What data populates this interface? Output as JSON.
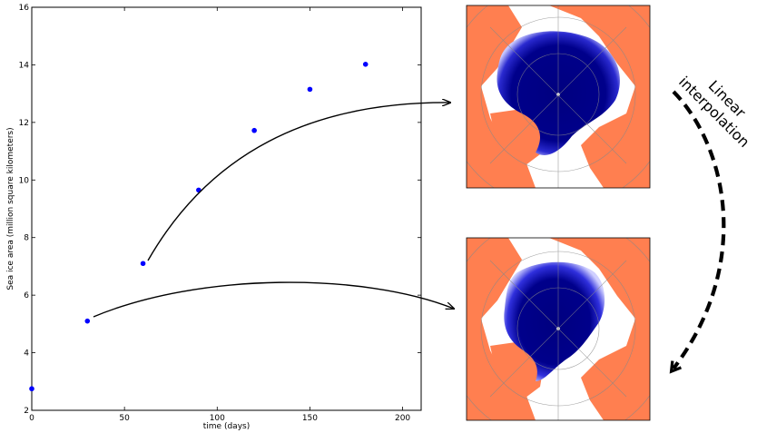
{
  "chart_data": {
    "type": "scatter",
    "xlabel": "time (days)",
    "ylabel": "Sea ice area (million square kilometers)",
    "xlim": [
      0,
      210
    ],
    "ylim": [
      2,
      16
    ],
    "x_ticks": [
      0,
      50,
      100,
      150,
      200
    ],
    "y_ticks": [
      2,
      4,
      6,
      8,
      10,
      12,
      14,
      16
    ],
    "grid": false,
    "series": [
      {
        "color": "#0000ff",
        "x": [
          0,
          30,
          60,
          90,
          120,
          150,
          180
        ],
        "y": [
          2.75,
          5.1,
          7.1,
          9.65,
          11.72,
          13.15,
          14.02
        ]
      }
    ]
  },
  "annotation": {
    "line1": "Linear",
    "line2": "interpolation"
  },
  "colors": {
    "land": "#ff7f50",
    "ice_dark": "#000080",
    "ice_mid": "#1a1acc",
    "map_bg": "#ffffff",
    "grid": "#888888"
  }
}
